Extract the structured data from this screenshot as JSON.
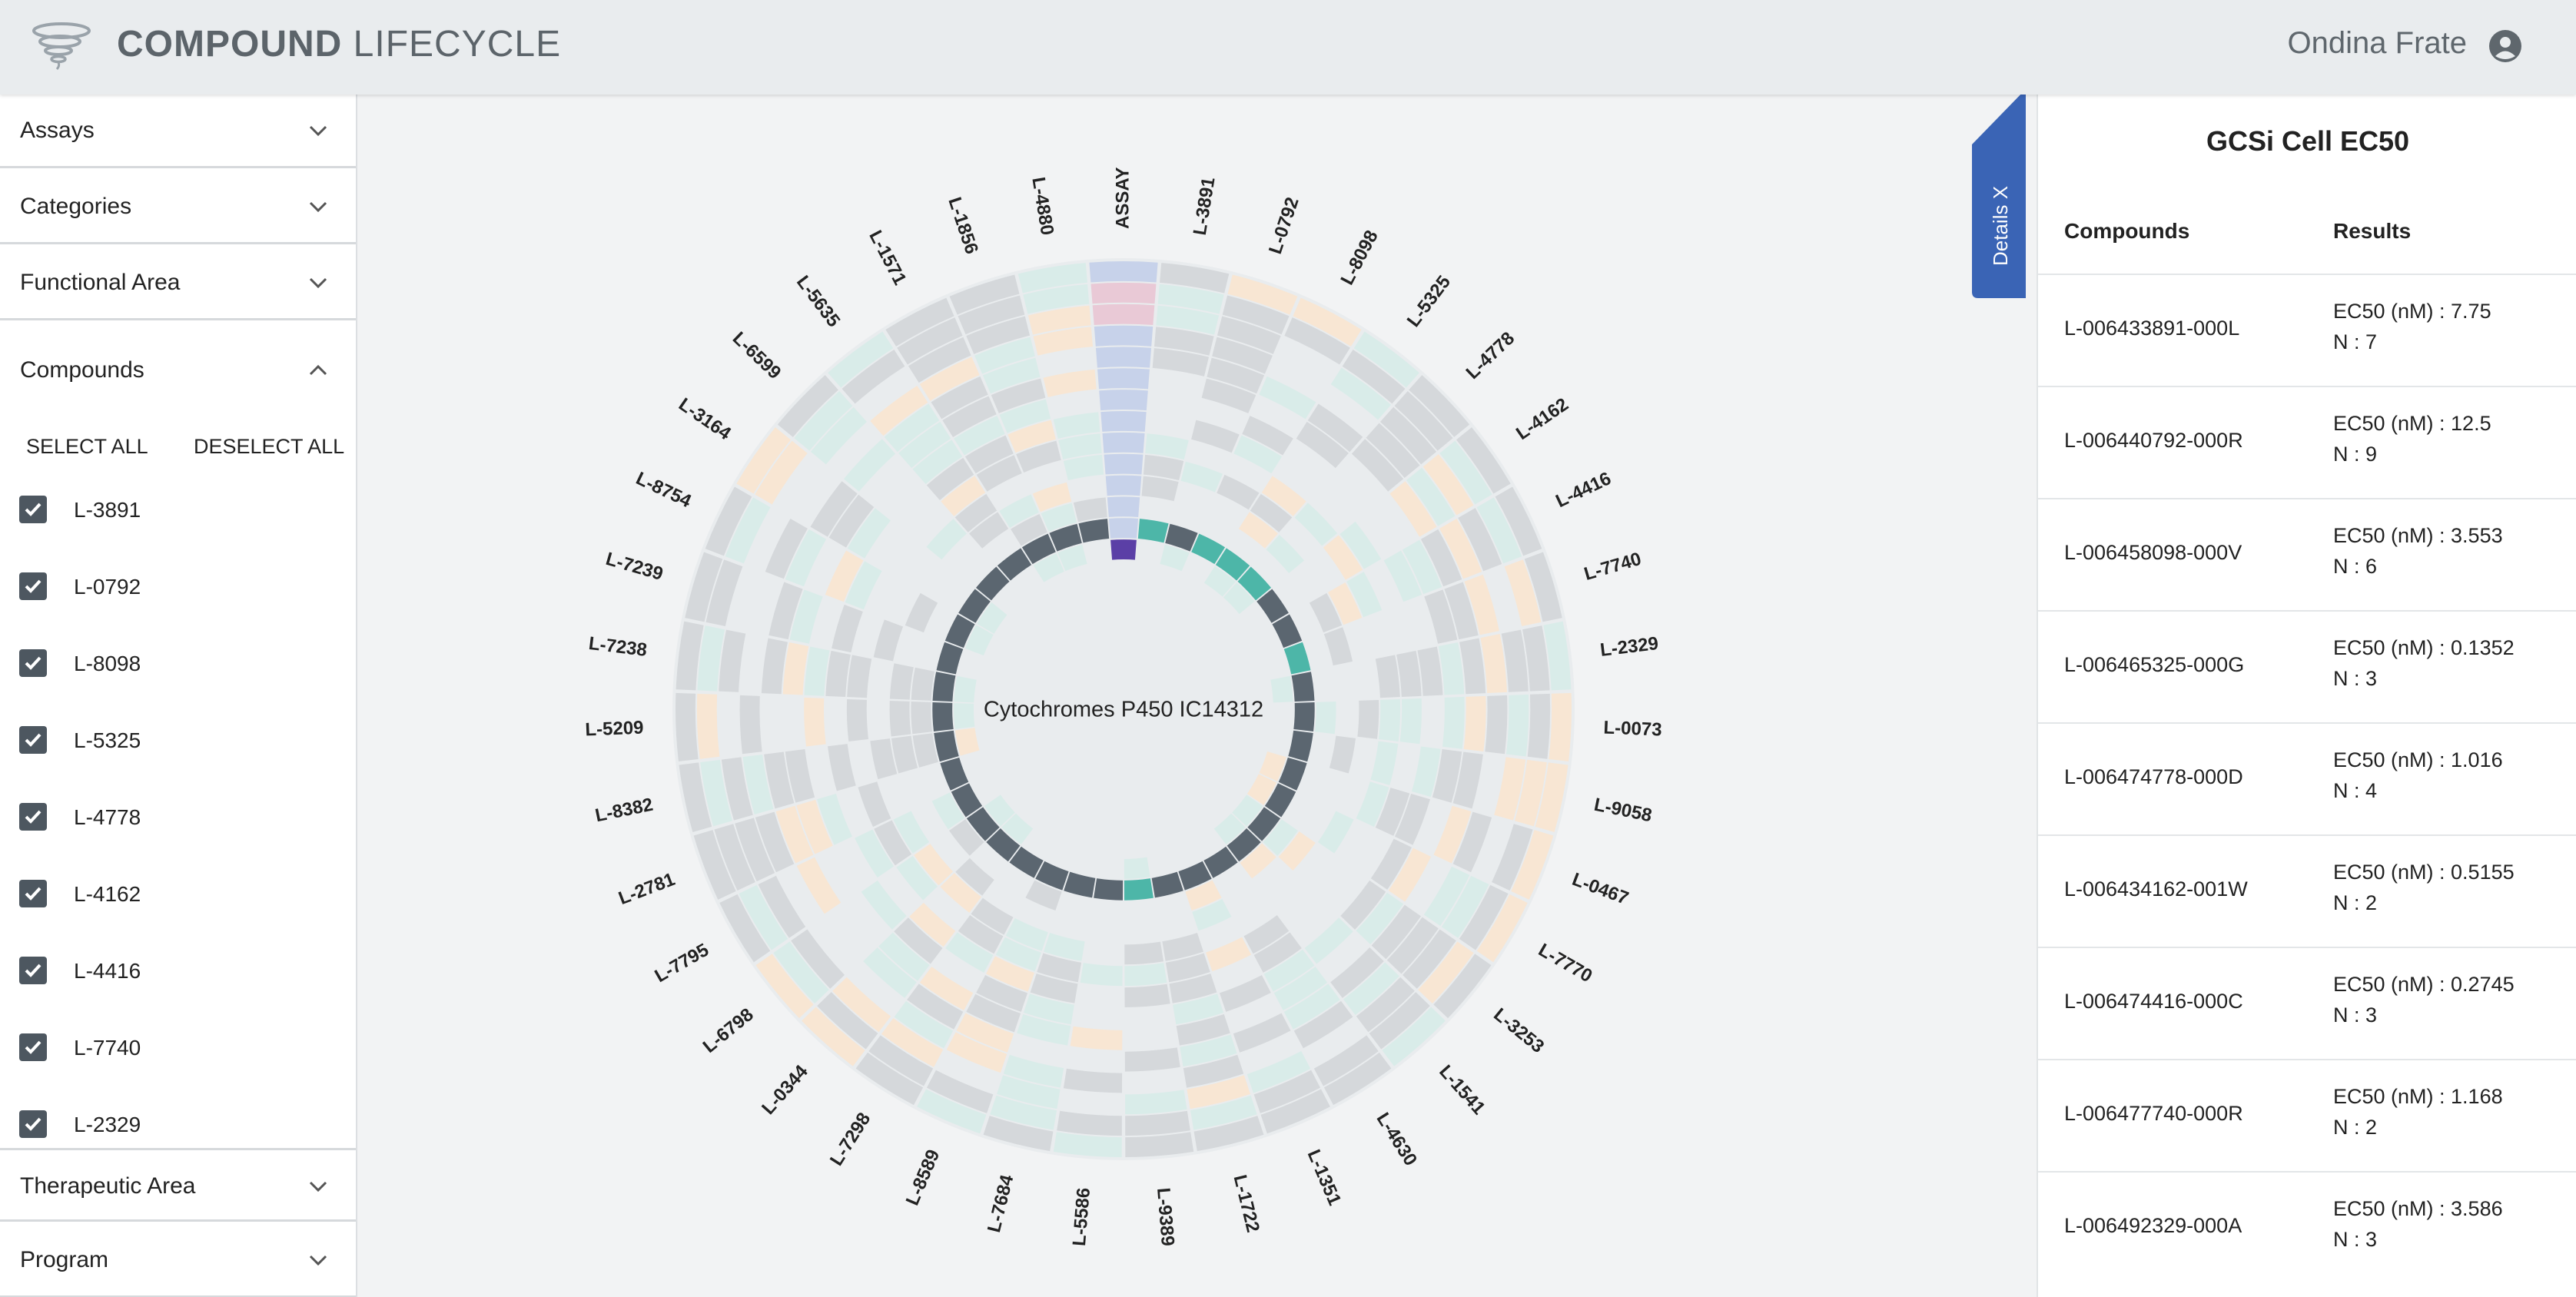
{
  "header": {
    "title_bold": "COMPOUND",
    "title_rest": "LIFECYCLE",
    "user_name": "Ondina Frate"
  },
  "sidebar": {
    "sections_top": [
      "Assays",
      "Categories",
      "Functional Area"
    ],
    "compounds_title": "Compounds",
    "select_all": "SELECT ALL",
    "deselect_all": "DESELECT ALL",
    "compounds": [
      "L-3891",
      "L-0792",
      "L-8098",
      "L-5325",
      "L-4778",
      "L-4162",
      "L-4416",
      "L-7740",
      "L-2329"
    ],
    "sections_bottom": [
      "Therapeutic Area",
      "Program"
    ]
  },
  "chart": {
    "center_label": "Cytochromes P450 IC14312",
    "spoke_labels": [
      "ASSAY",
      "L-3891",
      "L-0792",
      "L-8098",
      "L-5325",
      "L-4778",
      "L-4162",
      "L-4416",
      "L-7740",
      "L-2329",
      "L-0073",
      "L-9058",
      "L-0467",
      "L-7770",
      "L-3253",
      "L-1541",
      "L-4630",
      "L-1351",
      "L-1722",
      "L-9389",
      "L-5586",
      "L-7684",
      "L-8589",
      "L-7298",
      "L-0344",
      "L-6798",
      "L-7795",
      "L-2781",
      "L-8382",
      "L-5209",
      "L-7238",
      "L-7239",
      "L-8754",
      "L-3164",
      "L-6599",
      "L-5635",
      "L-1571",
      "L-1856",
      "L-4880"
    ],
    "colors": {
      "dark": "#5b6670",
      "teal_strong": "#4db6a8",
      "teal_light": "#d9ece9",
      "peach": "#f8e6d3",
      "gray": "#d5d8db",
      "pale": "#e9ecee",
      "assay_blue": "#c7d2ea",
      "assay_pink": "#e9c9d6",
      "assay_purple": "#5b3fa6"
    }
  },
  "details_tab": {
    "label": "Details X"
  },
  "right_panel": {
    "title": "GCSi Cell EC50",
    "col_compounds": "Compounds",
    "col_results": "Results",
    "rows": [
      {
        "compound": "L-006433891-000L",
        "ec50": "EC50 (nM) : 7.75",
        "n": "N : 7"
      },
      {
        "compound": "L-006440792-000R",
        "ec50": "EC50 (nM) : 12.5",
        "n": "N : 9"
      },
      {
        "compound": "L-006458098-000V",
        "ec50": "EC50 (nM) : 3.553",
        "n": "N : 6"
      },
      {
        "compound": "L-006465325-000G",
        "ec50": "EC50 (nM) : 0.1352",
        "n": "N : 3"
      },
      {
        "compound": "L-006474778-000D",
        "ec50": "EC50 (nM) : 1.016",
        "n": "N : 4"
      },
      {
        "compound": "L-006434162-001W",
        "ec50": "EC50 (nM) : 0.5155",
        "n": "N : 2"
      },
      {
        "compound": "L-006474416-000C",
        "ec50": "EC50 (nM) : 0.2745",
        "n": "N : 3"
      },
      {
        "compound": "L-006477740-000R",
        "ec50": "EC50 (nM) : 1.168",
        "n": "N : 2"
      },
      {
        "compound": "L-006492329-000A",
        "ec50": "EC50 (nM) : 3.586",
        "n": "N : 3"
      }
    ]
  }
}
